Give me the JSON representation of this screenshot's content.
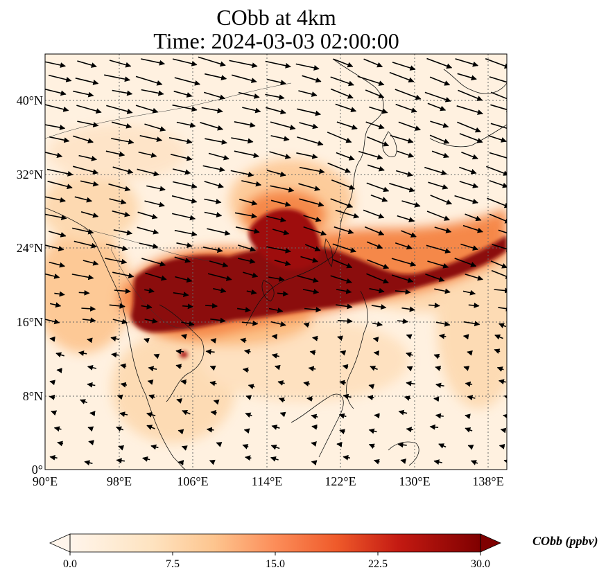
{
  "title": {
    "line1": "CObb at 4km",
    "line2": "Time: 2024-03-03 02:00:00"
  },
  "map": {
    "lon_range": [
      90,
      140
    ],
    "lat_range": [
      0,
      45
    ],
    "variable": "CObb",
    "level": "4km",
    "features": [
      "coastlines",
      "borders",
      "gridlines",
      "wind-vectors",
      "concentration-field"
    ]
  },
  "axes": {
    "lat_ticks": [
      {
        "value": 40,
        "label": "40°N"
      },
      {
        "value": 32,
        "label": "32°N"
      },
      {
        "value": 24,
        "label": "24°N"
      },
      {
        "value": 16,
        "label": "16°N"
      },
      {
        "value": 8,
        "label": "8°N"
      },
      {
        "value": 0,
        "label": "0°"
      }
    ],
    "lon_ticks": [
      {
        "value": 90,
        "label": "90°E"
      },
      {
        "value": 98,
        "label": "98°E"
      },
      {
        "value": 106,
        "label": "106°E"
      },
      {
        "value": 114,
        "label": "114°E"
      },
      {
        "value": 122,
        "label": "122°E"
      },
      {
        "value": 130,
        "label": "130°E"
      },
      {
        "value": 138,
        "label": "138°E"
      }
    ]
  },
  "colorbar": {
    "label": "CObb (ppbv)",
    "min": 0,
    "max": 30,
    "ticks": [
      {
        "value": 0,
        "label": "0.0"
      },
      {
        "value": 7.5,
        "label": "7.5"
      },
      {
        "value": 15,
        "label": "15.0"
      },
      {
        "value": 22.5,
        "label": "22.5"
      },
      {
        "value": 30,
        "label": "30.0"
      }
    ],
    "colors": [
      "#fff5eb",
      "#fdd49e",
      "#fdae6b",
      "#f16913",
      "#d94801",
      "#a50f15",
      "#7f0000"
    ],
    "extend": "both"
  }
}
